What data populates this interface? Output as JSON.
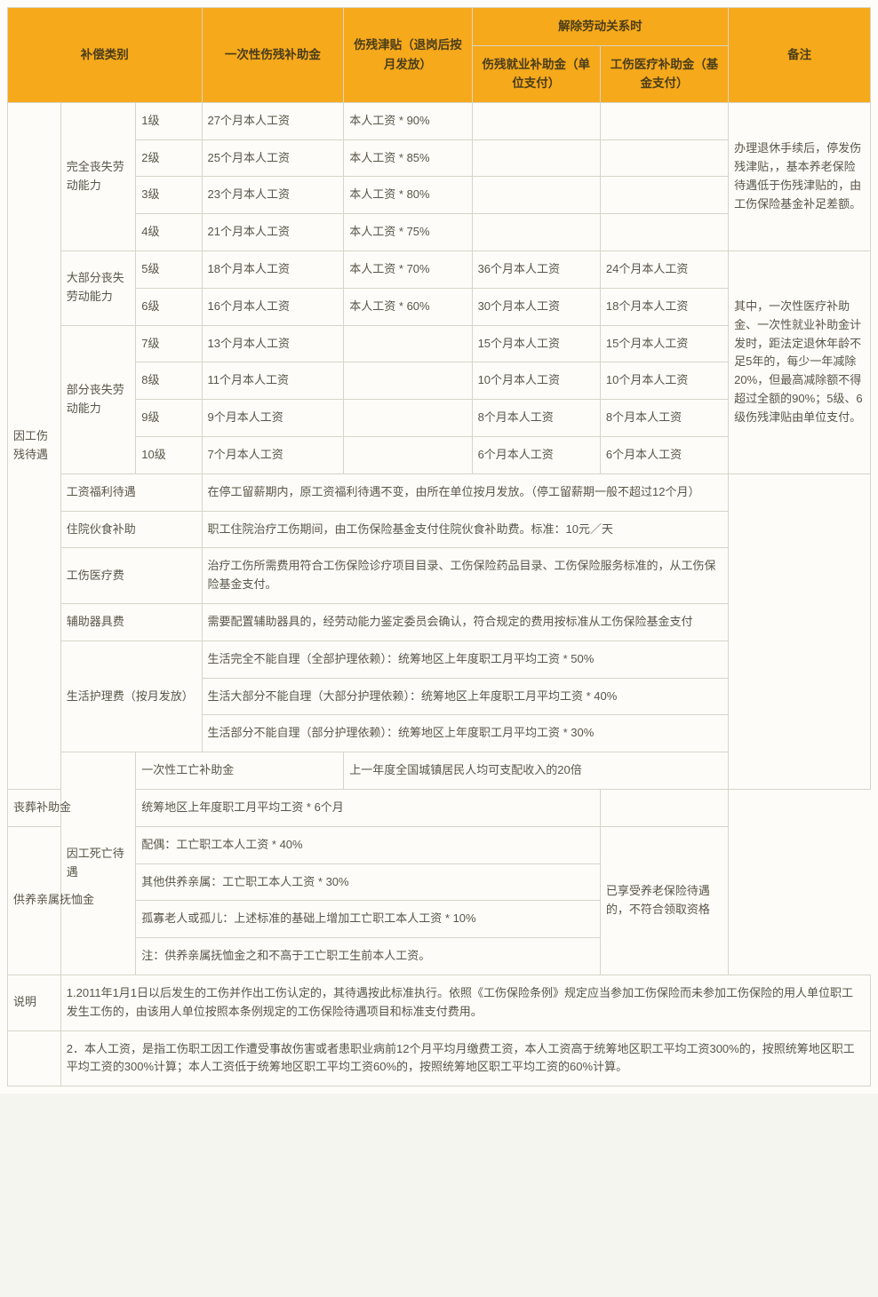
{
  "headers": {
    "category": "补偿类别",
    "lump": "一次性伤残补助金",
    "allowance": "伤残津贴（退岗后按月发放）",
    "terminate": "解除劳动关系时",
    "employment": "伤残就业补助金（单位支付）",
    "medical": "工伤医疗补助金（基金支付）",
    "remark": "备注"
  },
  "cat1": "因工伤残待遇",
  "cat2": "因工死亡待遇",
  "cat3": "说明",
  "ability": {
    "full": "完全丧失劳动能力",
    "most": "大部分丧失劳动能力",
    "part": "部分丧失劳动能力"
  },
  "levels": {
    "l1": {
      "n": "1级",
      "lump": "27个月本人工资",
      "allow": "本人工资 * 90%",
      "emp": "",
      "med": ""
    },
    "l2": {
      "n": "2级",
      "lump": "25个月本人工资",
      "allow": "本人工资 * 85%",
      "emp": "",
      "med": ""
    },
    "l3": {
      "n": "3级",
      "lump": "23个月本人工资",
      "allow": "本人工资 * 80%",
      "emp": "",
      "med": ""
    },
    "l4": {
      "n": "4级",
      "lump": "21个月本人工资",
      "allow": "本人工资 * 75%",
      "emp": "",
      "med": ""
    },
    "l5": {
      "n": "5级",
      "lump": "18个月本人工资",
      "allow": "本人工资 * 70%",
      "emp": "36个月本人工资",
      "med": "24个月本人工资"
    },
    "l6": {
      "n": "6级",
      "lump": "16个月本人工资",
      "allow": "本人工资 * 60%",
      "emp": "30个月本人工资",
      "med": "18个月本人工资"
    },
    "l7": {
      "n": "7级",
      "lump": "13个月本人工资",
      "allow": "",
      "emp": "15个月本人工资",
      "med": "15个月本人工资"
    },
    "l8": {
      "n": "8级",
      "lump": "11个月本人工资",
      "allow": "",
      "emp": "10个月本人工资",
      "med": "10个月本人工资"
    },
    "l9": {
      "n": "9级",
      "lump": "9个月本人工资",
      "allow": "",
      "emp": "8个月本人工资",
      "med": "8个月本人工资"
    },
    "l10": {
      "n": "10级",
      "lump": "7个月本人工资",
      "allow": "",
      "emp": "6个月本人工资",
      "med": "6个月本人工资"
    }
  },
  "remarks": {
    "r1": "办理退休手续后，停发伤残津贴，，基本养老保险待遇低于伤残津贴的，由工伤保险基金补足差额。",
    "r2": "其中，一次性医疗补助金、一次性就业补助金计发时，距法定退休年龄不足5年的，每少一年减除20%，但最高减除额不得超过全额的90%；5级、6级伤残津贴由单位支付。",
    "r3": "已享受养老保险待遇的，不符合领取资格"
  },
  "benefits": {
    "salary_label": "工资福利待遇",
    "salary": "在停工留薪期内，原工资福利待遇不变，由所在单位按月发放。（停工留薪期一般不超过12个月）",
    "hospital_label": "住院伙食补助",
    "hospital": "职工住院治疗工伤期间，由工伤保险基金支付住院伙食补助费。标准：10元／天",
    "medical_label": "工伤医疗费",
    "medical": "治疗工伤所需费用符合工伤保险诊疗项目目录、工伤保险药品目录、工伤保险服务标准的，从工伤保险基金支付。",
    "device_label": "辅助器具费",
    "device": "需要配置辅助器具的，经劳动能力鉴定委员会确认，符合规定的费用按标准从工伤保险基金支付",
    "care_label": "生活护理费（按月发放）",
    "care1": "生活完全不能自理（全部护理依赖）：统筹地区上年度职工月平均工资 * 50%",
    "care2": "生活大部分不能自理（大部分护理依赖）：统筹地区上年度职工月平均工资 * 40%",
    "care3": "生活部分不能自理（部分护理依赖）：统筹地区上年度职工月平均工资 * 30%"
  },
  "death": {
    "lump_label": "一次性工亡补助金",
    "lump": "上一年度全国城镇居民人均可支配收入的20倍",
    "funeral_label": "丧葬补助金",
    "funeral": "统筹地区上年度职工月平均工资 * 6个月",
    "pension_label": "供养亲属抚恤金",
    "spouse": "配偶：工亡职工本人工资 * 40%",
    "other": "其他供养亲属：工亡职工本人工资 * 30%",
    "orphan": "孤寡老人或孤儿：上述标准的基础上增加工亡职工本人工资 * 10%",
    "note": "注：供养亲属抚恤金之和不高于工亡职工生前本人工资。"
  },
  "explain": {
    "e1": "1.2011年1月1日以后发生的工伤并作出工伤认定的，其待遇按此标准执行。依照《工伤保险条例》规定应当参加工伤保险而未参加工伤保险的用人单位职工发生工伤的，由该用人单位按照本条例规定的工伤保险待遇项目和标准支付费用。",
    "e2": "2．本人工资，是指工伤职工因工作遭受事故伤害或者患职业病前12个月平均月缴费工资，本人工资高于统筹地区职工平均工资300%的，按照统筹地区职工平均工资的300%计算；本人工资低于统筹地区职工平均工资60%的，按照统筹地区职工平均工资的60%计算。"
  }
}
